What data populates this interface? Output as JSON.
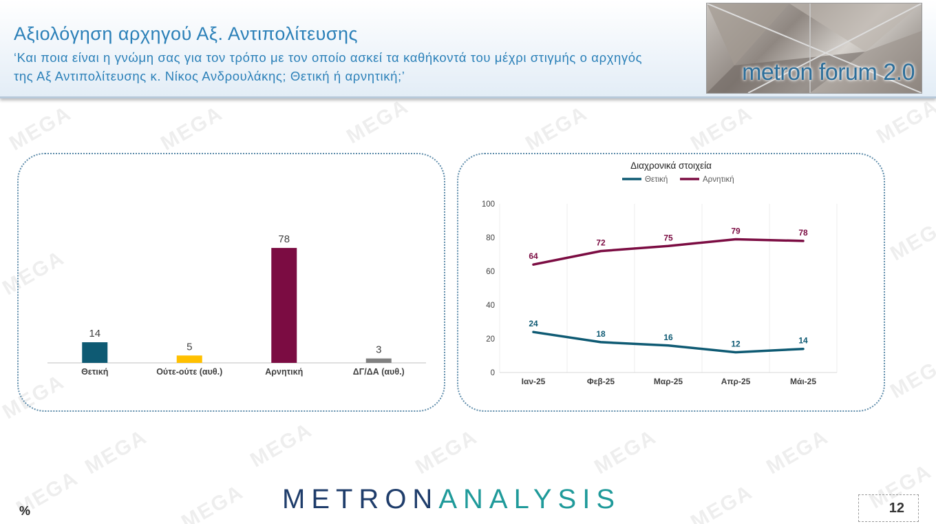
{
  "header": {
    "title": "Αξιολόγηση αρχηγού Αξ. Αντιπολίτευσης",
    "subtitle": "‘Και ποια είναι η γνώμη σας για τον τρόπο με τον οποίο ασκεί τα καθήκοντά του μέχρι στιγμής ο αρχηγός της Αξ Αντιπολίτευσης κ. Νίκος Ανδρουλάκης; Θετική ή αρνητική;’",
    "logo_text": "metron forum 2.0"
  },
  "watermark": "MEGA",
  "chart_data": [
    {
      "type": "bar",
      "categories": [
        "Θετική",
        "Ούτε-ούτε (αυθ.)",
        "Αρνητική",
        "ΔΓ/ΔΑ (αυθ.)"
      ],
      "values": [
        14,
        5,
        78,
        3
      ],
      "colors": [
        "#0e5a73",
        "#ffc000",
        "#7b0c42",
        "#808080"
      ],
      "ylim": [
        0,
        100
      ],
      "title": "",
      "xlabel": "",
      "ylabel": ""
    },
    {
      "type": "line",
      "title": "Διαχρονικά στοιχεία",
      "categories": [
        "Ιαν-25",
        "Φεβ-25",
        "Μαρ-25",
        "Απρ-25",
        "Μάι-25"
      ],
      "series": [
        {
          "name": "Θετική",
          "values": [
            24,
            18,
            16,
            12,
            14
          ],
          "color": "#0e5a73"
        },
        {
          "name": "Αρνητική",
          "values": [
            64,
            72,
            75,
            79,
            78
          ],
          "color": "#7b0c42"
        }
      ],
      "yticks": [
        0,
        20,
        40,
        60,
        80,
        100
      ],
      "ylim": [
        0,
        100
      ],
      "legend": "top",
      "grid": "vertical"
    }
  ],
  "footer": {
    "brand_a": "METRON",
    "brand_b": "ANALYSIS",
    "unit": "%",
    "page_number": "12"
  }
}
